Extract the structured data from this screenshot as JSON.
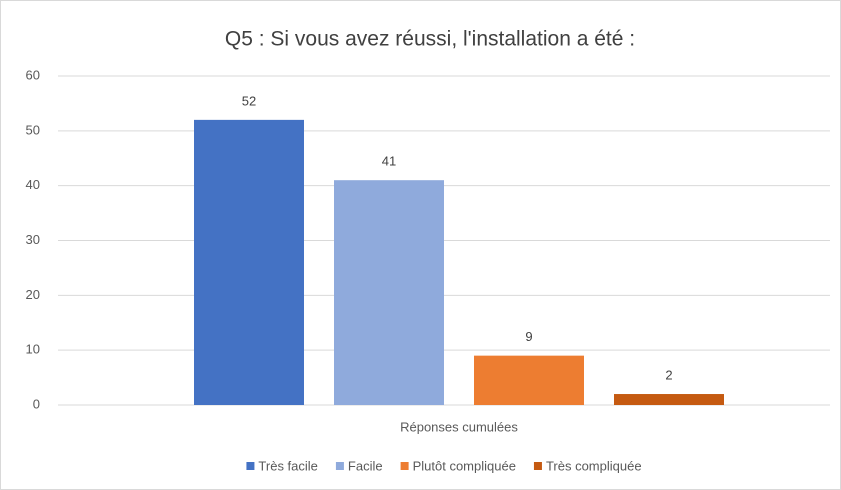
{
  "chart_data": {
    "type": "bar",
    "title": "Q5 : Si vous avez réussi, l'installation a été :",
    "categories": [
      "Réponses cumulées"
    ],
    "series": [
      {
        "name": "Très facile",
        "color": "#4472c4",
        "values": [
          52
        ]
      },
      {
        "name": "Facile",
        "color": "#8faadc",
        "values": [
          41
        ]
      },
      {
        "name": "Plutôt compliquée",
        "color": "#ed7d31",
        "values": [
          9
        ]
      },
      {
        "name": "Très compliquée",
        "color": "#c55a11",
        "values": [
          2
        ]
      }
    ],
    "ylim": [
      0,
      60
    ],
    "yticks": [
      0,
      10,
      20,
      30,
      40,
      50,
      60
    ],
    "grid": true,
    "legend": "bottom"
  }
}
